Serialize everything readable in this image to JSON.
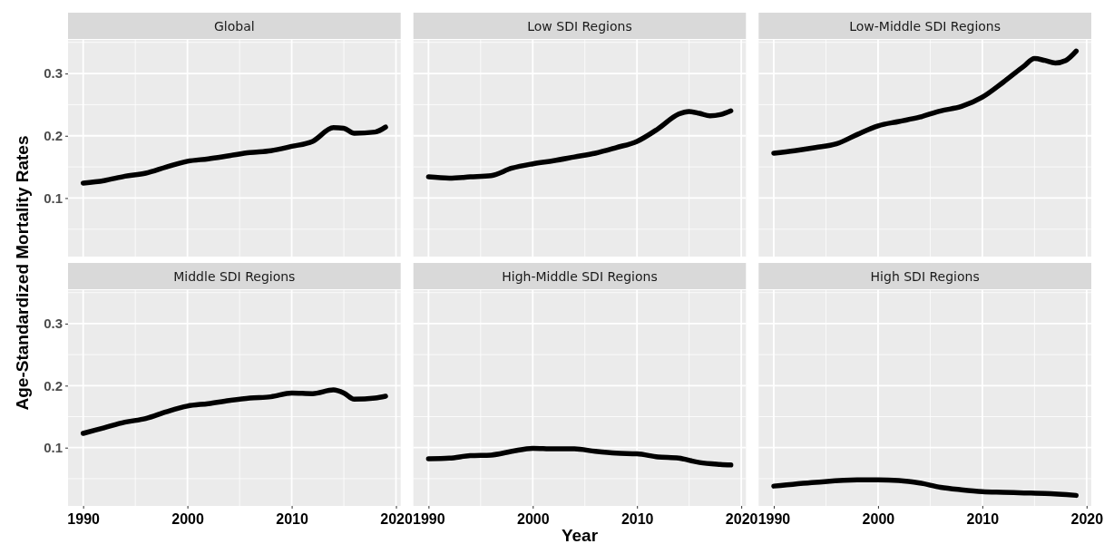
{
  "chart_data": [
    {
      "type": "line",
      "title": "Global",
      "ylabel": "Age-Standardized Mortality Rates",
      "tick_labels": "y",
      "grid": true,
      "color": "#000000",
      "x": [
        1990,
        1992,
        1994,
        1996,
        1998,
        2000,
        2002,
        2004,
        2006,
        2008,
        2010,
        2012,
        2014,
        2015,
        2016,
        2018,
        2019
      ],
      "values": [
        0.124,
        0.128,
        0.135,
        0.14,
        0.15,
        0.159,
        0.163,
        0.168,
        0.173,
        0.176,
        0.183,
        0.191,
        0.213,
        0.212,
        0.204,
        0.206,
        0.214
      ],
      "xlim": [
        1988.55,
        2020.45
      ],
      "ylim": [
        0.006,
        0.354
      ],
      "xticks": [
        1990,
        2000,
        2010,
        2020
      ],
      "yticks": [
        0.1,
        0.2,
        0.3
      ]
    },
    {
      "type": "line",
      "title": "Low SDI Regions",
      "tick_labels": false,
      "grid": true,
      "color": "#000000",
      "x": [
        1990,
        1992,
        1994,
        1996,
        1998,
        2000,
        2002,
        2004,
        2006,
        2008,
        2010,
        2012,
        2014,
        2015,
        2016,
        2017,
        2018,
        2019
      ],
      "values": [
        0.134,
        0.132,
        0.134,
        0.136,
        0.148,
        0.155,
        0.16,
        0.166,
        0.172,
        0.181,
        0.191,
        0.211,
        0.235,
        0.239,
        0.236,
        0.232,
        0.234,
        0.24
      ],
      "xlim": [
        1988.55,
        2020.45
      ],
      "ylim": [
        0.006,
        0.354
      ],
      "xticks": [
        1990,
        2000,
        2010,
        2020
      ],
      "yticks": [
        0.1,
        0.2,
        0.3
      ]
    },
    {
      "type": "line",
      "title": "Low-Middle SDI Regions",
      "tick_labels": false,
      "grid": true,
      "color": "#000000",
      "x": [
        1990,
        1992,
        1994,
        1996,
        1998,
        2000,
        2002,
        2004,
        2006,
        2008,
        2010,
        2012,
        2014,
        2015,
        2016,
        2017,
        2018,
        2019
      ],
      "values": [
        0.172,
        0.176,
        0.181,
        0.187,
        0.202,
        0.216,
        0.223,
        0.23,
        0.24,
        0.247,
        0.262,
        0.286,
        0.312,
        0.324,
        0.321,
        0.317,
        0.321,
        0.336
      ],
      "xlim": [
        1988.55,
        2020.45
      ],
      "ylim": [
        0.006,
        0.354
      ],
      "xticks": [
        1990,
        2000,
        2010,
        2020
      ],
      "yticks": [
        0.1,
        0.2,
        0.3
      ]
    },
    {
      "type": "line",
      "title": "Middle SDI Regions",
      "grid": true,
      "color": "#000000",
      "x": [
        1990,
        1992,
        1994,
        1996,
        1998,
        2000,
        2002,
        2004,
        2006,
        2008,
        2010,
        2012,
        2014,
        2015,
        2016,
        2018,
        2019
      ],
      "values": [
        0.123,
        0.132,
        0.141,
        0.147,
        0.158,
        0.167,
        0.171,
        0.176,
        0.18,
        0.182,
        0.188,
        0.187,
        0.193,
        0.188,
        0.178,
        0.18,
        0.183
      ],
      "xlim": [
        1988.55,
        2020.45
      ],
      "ylim": [
        0.006,
        0.354
      ],
      "xticks": [
        1990,
        2000,
        2010,
        2020
      ],
      "yticks": [
        0.1,
        0.2,
        0.3
      ]
    },
    {
      "type": "line",
      "title": "High-Middle SDI Regions",
      "xlabel": "Year",
      "tick_labels": "x",
      "grid": true,
      "color": "#000000",
      "x": [
        1990,
        1992,
        1994,
        1996,
        1998,
        2000,
        2002,
        2004,
        2006,
        2008,
        2010,
        2012,
        2014,
        2016,
        2018,
        2019
      ],
      "values": [
        0.082,
        0.083,
        0.087,
        0.088,
        0.094,
        0.099,
        0.098,
        0.098,
        0.094,
        0.091,
        0.09,
        0.085,
        0.083,
        0.076,
        0.073,
        0.072
      ],
      "xlim": [
        1988.55,
        2020.45
      ],
      "ylim": [
        0.006,
        0.354
      ],
      "xticks": [
        1990,
        2000,
        2010,
        2020
      ],
      "yticks": [
        0.1,
        0.2,
        0.3
      ]
    },
    {
      "type": "line",
      "title": "High SDI Regions",
      "tick_labels": "x",
      "grid": true,
      "color": "#000000",
      "x": [
        1990,
        1994,
        1998,
        2000,
        2002,
        2004,
        2006,
        2008,
        2010,
        2012,
        2014,
        2016,
        2019
      ],
      "values": [
        0.038,
        0.044,
        0.048,
        0.048,
        0.047,
        0.043,
        0.036,
        0.032,
        0.029,
        0.028,
        0.027,
        0.026,
        0.023
      ],
      "xlim": [
        1988.55,
        2020.45
      ],
      "ylim": [
        0.006,
        0.354
      ],
      "xticks": [
        1990,
        2000,
        2010,
        2020
      ],
      "yticks": [
        0.1,
        0.2,
        0.3
      ]
    }
  ]
}
